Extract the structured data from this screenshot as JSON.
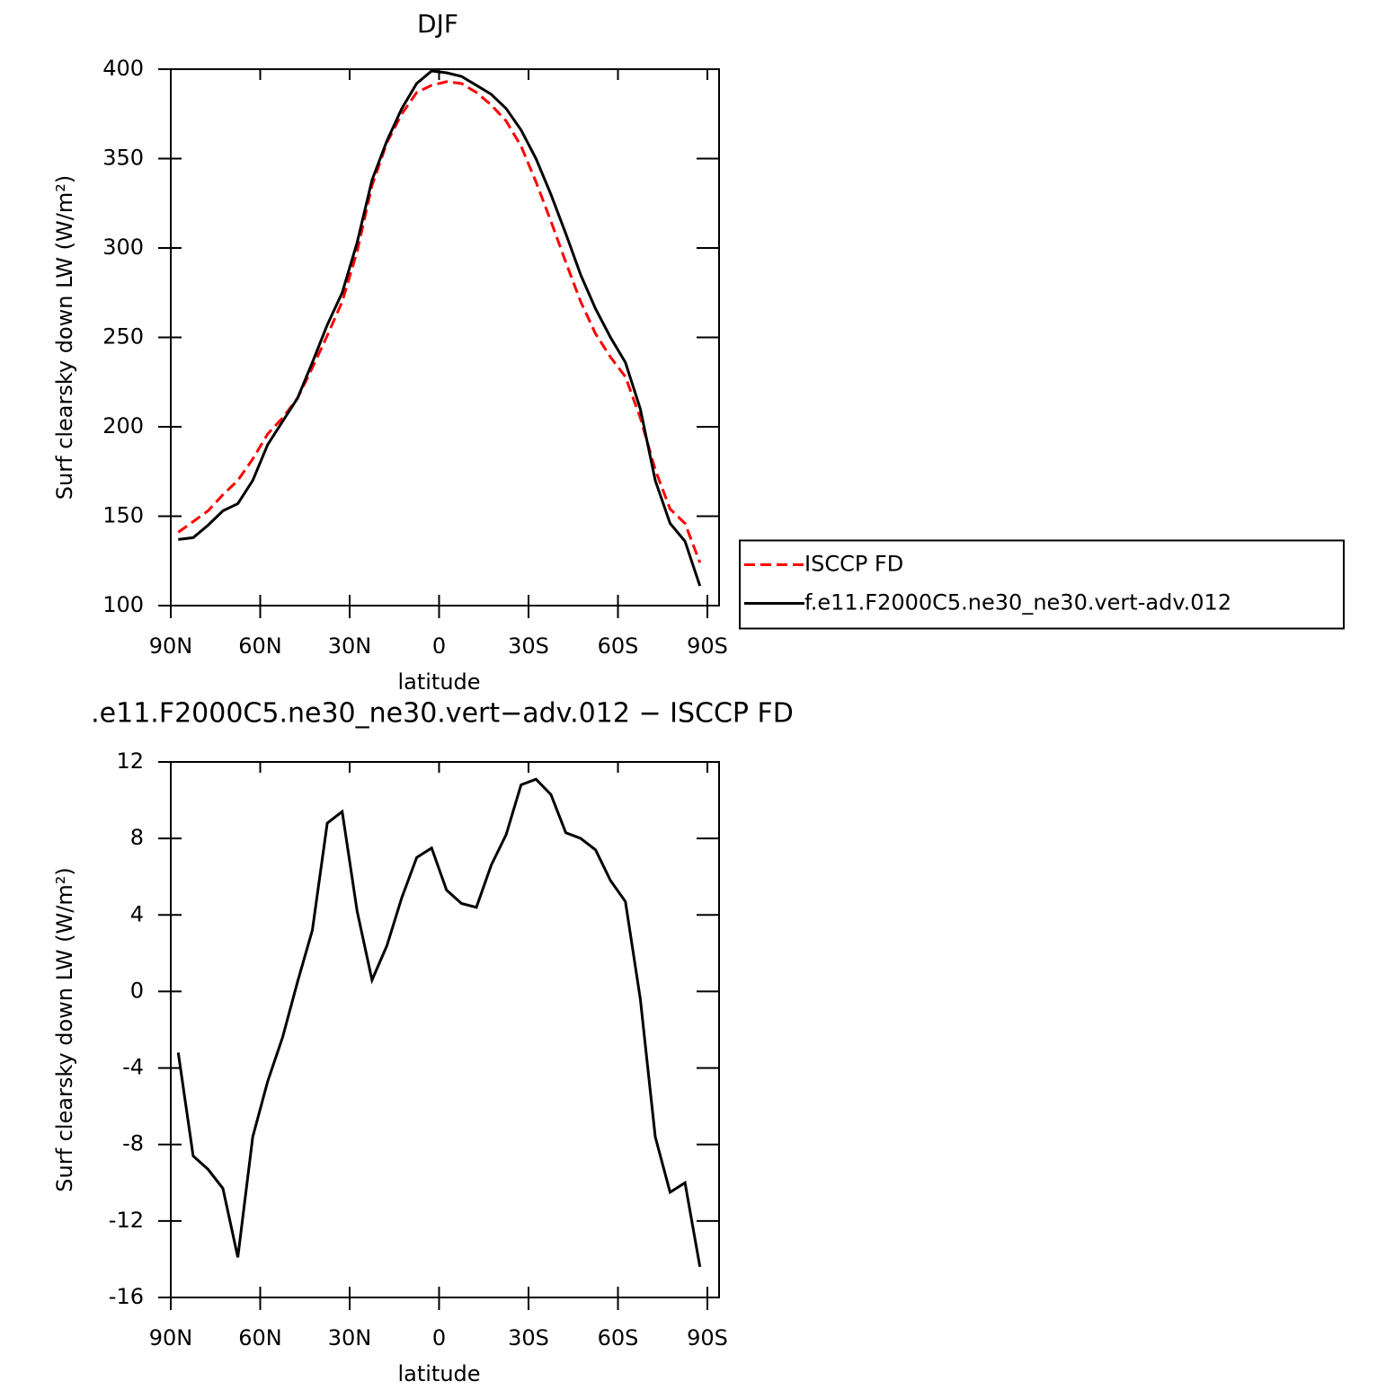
{
  "chart_data": [
    {
      "type": "line",
      "title": "DJF",
      "xlabel": "latitude",
      "ylabel": "Surf clearsky down LW (W/m²)",
      "x": [
        87.5,
        82.5,
        77.5,
        72.5,
        67.5,
        62.5,
        57.5,
        52.5,
        47.5,
        42.5,
        37.5,
        32.5,
        27.5,
        22.5,
        17.5,
        12.5,
        7.5,
        2.5,
        -2.5,
        -7.5,
        -12.5,
        -17.5,
        -22.5,
        -27.5,
        -32.5,
        -37.5,
        -42.5,
        -47.5,
        -52.5,
        -57.5,
        -62.5,
        -67.5,
        -72.5,
        -77.5,
        -82.5,
        -87.5
      ],
      "series": [
        {
          "name": "ISCCP FD",
          "color": "#ff0000",
          "dash": "dashed",
          "values": [
            141,
            147,
            153,
            162,
            170,
            182,
            196,
            205,
            216,
            233,
            251,
            270,
            298,
            335,
            359,
            375,
            387,
            391,
            393,
            392,
            387,
            380,
            371,
            357,
            337,
            315,
            292,
            270,
            252,
            239,
            228,
            205,
            176,
            154,
            146,
            124
          ]
        },
        {
          "name": "f.e11.F2000C5.ne30_ne30.vert-adv.012",
          "color": "#000000",
          "dash": "solid",
          "values": [
            137,
            138,
            145,
            153,
            157,
            170,
            190,
            203,
            216,
            236,
            257,
            275,
            303,
            338,
            360,
            378,
            392,
            399,
            398,
            396,
            391,
            386,
            378,
            366,
            350,
            330,
            308,
            285,
            266,
            250,
            236,
            210,
            170,
            146,
            136,
            111
          ]
        }
      ],
      "xlim": [
        90,
        -90
      ],
      "xticks": [
        {
          "value": 90,
          "label": "90N"
        },
        {
          "value": 60,
          "label": "60N"
        },
        {
          "value": 30,
          "label": "30N"
        },
        0,
        {
          "value": -30,
          "label": "30S"
        },
        {
          "value": -60,
          "label": "60S"
        },
        {
          "value": -90,
          "label": "90S"
        }
      ],
      "ylim": [
        100,
        400
      ],
      "yticks": [
        100,
        150,
        200,
        250,
        300,
        350,
        400
      ],
      "legend": "right"
    },
    {
      "type": "line",
      "title": ".e11.F2000C5.ne30_ne30.vert−adv.012 − ISCCP FD",
      "xlabel": "latitude",
      "ylabel": "Surf clearsky down LW (W/m²)",
      "x": [
        87.5,
        82.5,
        77.5,
        72.5,
        67.5,
        62.5,
        57.5,
        52.5,
        47.5,
        42.5,
        37.5,
        32.5,
        27.5,
        22.5,
        17.5,
        12.5,
        7.5,
        2.5,
        -2.5,
        -7.5,
        -12.5,
        -17.5,
        -22.5,
        -27.5,
        -32.5,
        -37.5,
        -42.5,
        -47.5,
        -52.5,
        -57.5,
        -62.5,
        -67.5,
        -72.5,
        -77.5,
        -82.5,
        -87.5
      ],
      "series": [
        {
          "color": "#000000",
          "dash": "solid",
          "values": [
            -3.2,
            -8.6,
            -9.3,
            -10.3,
            -13.9,
            -7.6,
            -4.7,
            -2.4,
            0.5,
            3.2,
            8.8,
            9.4,
            4.2,
            0.6,
            2.4,
            4.9,
            7.0,
            7.5,
            5.3,
            4.6,
            4.4,
            6.6,
            8.2,
            10.8,
            11.1,
            10.3,
            8.3,
            8.0,
            7.4,
            5.8,
            4.7,
            -0.4,
            -7.6,
            -10.5,
            -10.0,
            -14.4
          ]
        }
      ],
      "xlim": [
        90,
        -90
      ],
      "xticks": [
        {
          "value": 90,
          "label": "90N"
        },
        {
          "value": 60,
          "label": "60N"
        },
        {
          "value": 30,
          "label": "30N"
        },
        0,
        {
          "value": -30,
          "label": "30S"
        },
        {
          "value": -60,
          "label": "60S"
        },
        {
          "value": -90,
          "label": "90S"
        }
      ],
      "ylim": [
        -16,
        12
      ],
      "yticks": [
        -16,
        -12,
        -8,
        -4,
        0,
        4,
        8,
        12
      ]
    }
  ]
}
